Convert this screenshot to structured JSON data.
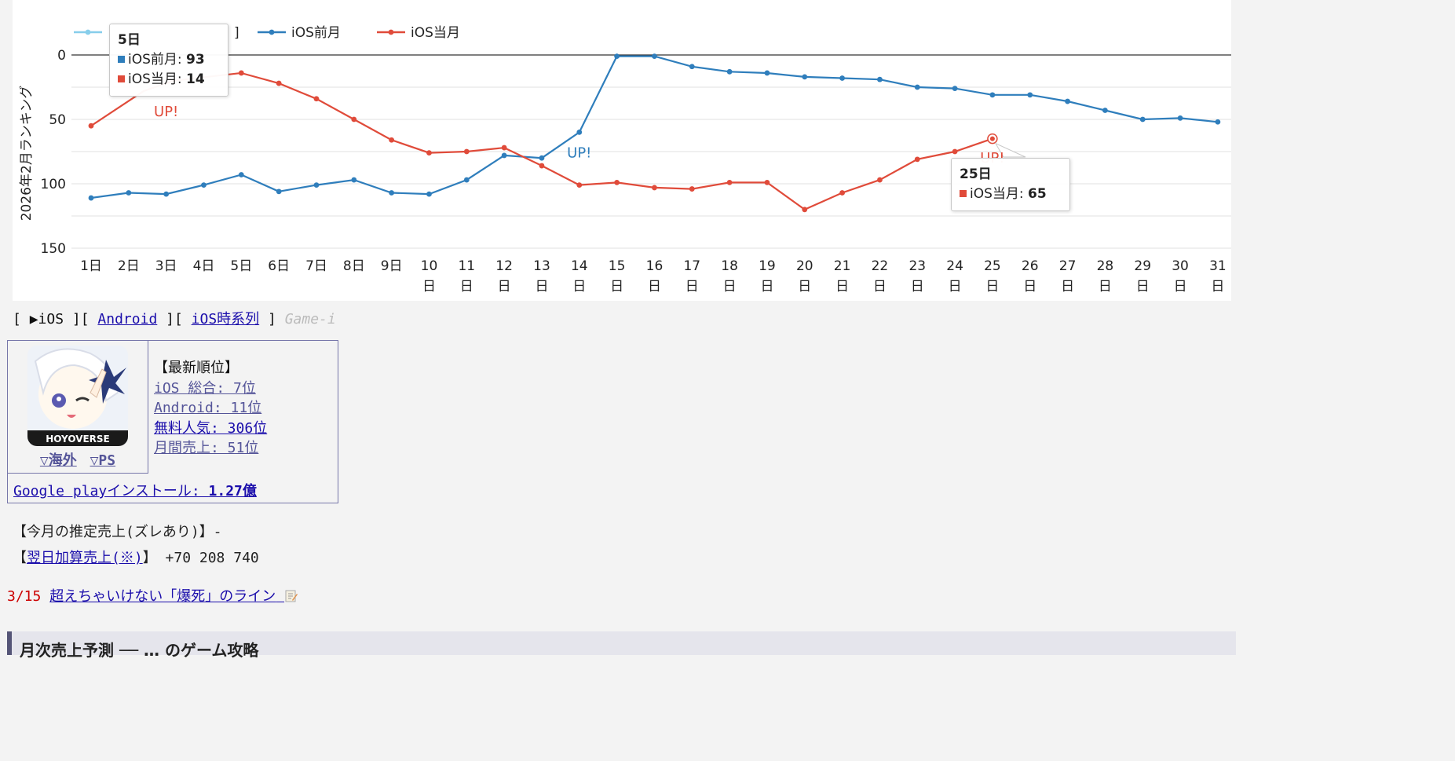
{
  "chart_data": {
    "type": "line",
    "ylabel": "2026年2月ランキング",
    "ylim": [
      0,
      150
    ],
    "y_inverted": true,
    "yticks": [
      0,
      50,
      100,
      150
    ],
    "categories": [
      "1日",
      "2日",
      "3日",
      "4日",
      "5日",
      "6日",
      "7日",
      "8日",
      "9日",
      "10日",
      "11日",
      "12日",
      "13日",
      "14日",
      "15日",
      "16日",
      "17日",
      "18日",
      "19日",
      "20日",
      "21日",
      "22日",
      "23日",
      "24日",
      "25日",
      "26日",
      "27日",
      "28日",
      "29日",
      "30日",
      "31日"
    ],
    "grid": true,
    "legend_position": "top-left",
    "series": [
      {
        "name": "iOS前月",
        "color": "#2f7ebc",
        "values": [
          111,
          107,
          108,
          101,
          93,
          106,
          101,
          97,
          107,
          108,
          97,
          78,
          80,
          60,
          1,
          1,
          9,
          13,
          14,
          17,
          18,
          19,
          25,
          26,
          31,
          31,
          36,
          43,
          50,
          49,
          52
        ]
      },
      {
        "name": "iOS当月",
        "color": "#e04b3a",
        "values": [
          55,
          null,
          null,
          null,
          14,
          22,
          34,
          50,
          66,
          76,
          75,
          72,
          86,
          101,
          99,
          103,
          104,
          99,
          99,
          120,
          107,
          97,
          81,
          75,
          65,
          null,
          null,
          null,
          null,
          null,
          null
        ]
      }
    ],
    "hidden_legend_entry_tail": "]",
    "hidden_legend_color": "#87ceeb",
    "annotations": [
      {
        "text": "UP!",
        "series": "iOS当月",
        "x": "3日"
      },
      {
        "text": "UP!",
        "series": "iOS前月",
        "x": "14日"
      },
      {
        "text": "UP!",
        "series": "iOS当月",
        "x": "25日"
      }
    ],
    "tooltips": [
      {
        "title": "5日",
        "rows": [
          {
            "label": "iOS前月",
            "value": "93",
            "color": "#2f7ebc"
          },
          {
            "label": "iOS当月",
            "value": "14",
            "color": "#e04b3a"
          }
        ]
      },
      {
        "title": "25日",
        "rows": [
          {
            "label": "iOS当月",
            "value": "65",
            "color": "#e04b3a"
          }
        ]
      }
    ]
  },
  "nav": {
    "open1": "[",
    "ios": "▶iOS",
    "close1": "]",
    "open2": "[",
    "android": "Android",
    "close2": "]",
    "open3": "[",
    "ios_timeline": "iOS時系列",
    "close3": "]",
    "brand": "Game-i"
  },
  "info": {
    "icon_name": "game-app-icon",
    "icon_brand_text": "HOYOVERSE",
    "link_overseas": "▽海外",
    "link_ps": "▽PS",
    "latest_header": "【最新順位】",
    "ranks": [
      "iOS 総合: 7位",
      "Android: 11位",
      "無料人気: 306位",
      "月間売上: 51位"
    ],
    "install_label": "Google playインストール: ",
    "install_value": "1.27億"
  },
  "sales": {
    "estimate_label": "【今月の推定売上(ズレあり)】-",
    "next_open": "【",
    "next_link": "翌日加算売上(※)",
    "next_close": "】",
    "next_value": "+70 208 740"
  },
  "news": {
    "date": "3/15",
    "title": "超えちゃいけない「爆死」のライン"
  },
  "section": {
    "title": "月次売上予測 ── … のゲーム攻略"
  }
}
